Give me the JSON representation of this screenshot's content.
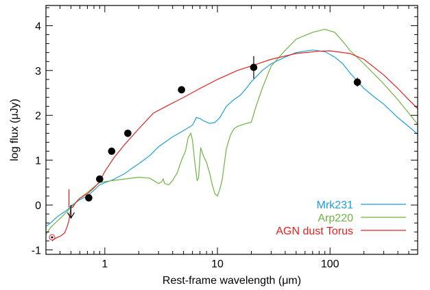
{
  "chart_data": {
    "type": "line",
    "title": "",
    "xlabel": "Rest-frame wavelength (μm)",
    "ylabel": "log flux (μJy)",
    "xscale": "log",
    "xlim": [
      0.3,
      600
    ],
    "ylim": [
      -1.1,
      4.45
    ],
    "x_ticks": [
      1,
      10,
      100
    ],
    "x_tick_labels": [
      "1",
      "10",
      "100"
    ],
    "y_ticks": [
      -1,
      0,
      1,
      2,
      3,
      4
    ],
    "y_tick_labels": [
      "-1",
      "0",
      "1",
      "2",
      "3",
      "4"
    ],
    "grid": false,
    "legend_position": "bottom-right",
    "series": [
      {
        "name": "Mrk231",
        "color": "#1a9fd6",
        "points": [
          [
            0.3,
            -0.48
          ],
          [
            0.33,
            -0.4
          ],
          [
            0.37,
            -0.28
          ],
          [
            0.42,
            -0.18
          ],
          [
            0.46,
            -0.12
          ],
          [
            0.5,
            -0.02
          ],
          [
            0.55,
            0.05
          ],
          [
            0.6,
            0.12
          ],
          [
            0.7,
            0.2
          ],
          [
            0.8,
            0.33
          ],
          [
            0.9,
            0.45
          ],
          [
            1.0,
            0.5
          ],
          [
            1.15,
            0.55
          ],
          [
            1.3,
            0.62
          ],
          [
            1.5,
            0.7
          ],
          [
            1.7,
            0.8
          ],
          [
            2.0,
            0.92
          ],
          [
            2.5,
            1.1
          ],
          [
            3.0,
            1.3
          ],
          [
            3.5,
            1.42
          ],
          [
            4.0,
            1.52
          ],
          [
            5.0,
            1.66
          ],
          [
            6.0,
            1.78
          ],
          [
            6.5,
            1.95
          ],
          [
            7.0,
            1.93
          ],
          [
            7.5,
            1.88
          ],
          [
            8.5,
            1.82
          ],
          [
            9.5,
            1.84
          ],
          [
            10.5,
            1.95
          ],
          [
            12.0,
            2.2
          ],
          [
            14.0,
            2.35
          ],
          [
            16.0,
            2.45
          ],
          [
            18.0,
            2.6
          ],
          [
            20.0,
            2.75
          ],
          [
            25.0,
            3.0
          ],
          [
            30.0,
            3.15
          ],
          [
            40.0,
            3.3
          ],
          [
            50.0,
            3.4
          ],
          [
            70.0,
            3.46
          ],
          [
            90.0,
            3.42
          ],
          [
            110.0,
            3.3
          ],
          [
            130.0,
            3.15
          ],
          [
            150.0,
            2.95
          ],
          [
            200.0,
            2.6
          ],
          [
            250.0,
            2.4
          ],
          [
            300.0,
            2.25
          ],
          [
            400.0,
            1.95
          ],
          [
            500.0,
            1.75
          ],
          [
            600.0,
            1.58
          ]
        ]
      },
      {
        "name": "Arp220",
        "color": "#6db33f",
        "points": [
          [
            0.3,
            -0.65
          ],
          [
            0.33,
            -0.5
          ],
          [
            0.37,
            -0.38
          ],
          [
            0.42,
            -0.25
          ],
          [
            0.46,
            -0.15
          ],
          [
            0.5,
            -0.05
          ],
          [
            0.55,
            0.05
          ],
          [
            0.6,
            0.15
          ],
          [
            0.7,
            0.28
          ],
          [
            0.8,
            0.4
          ],
          [
            0.9,
            0.5
          ],
          [
            1.0,
            0.52
          ],
          [
            1.2,
            0.55
          ],
          [
            1.5,
            0.58
          ],
          [
            2.0,
            0.62
          ],
          [
            2.5,
            0.6
          ],
          [
            3.0,
            0.48
          ],
          [
            3.2,
            0.52
          ],
          [
            3.3,
            0.58
          ],
          [
            3.4,
            0.48
          ],
          [
            3.7,
            0.45
          ],
          [
            4.0,
            0.55
          ],
          [
            4.4,
            0.72
          ],
          [
            4.8,
            1.0
          ],
          [
            5.2,
            1.2
          ],
          [
            5.5,
            1.5
          ],
          [
            5.8,
            1.6
          ],
          [
            6.0,
            1.45
          ],
          [
            6.3,
            0.95
          ],
          [
            6.6,
            0.55
          ],
          [
            6.8,
            0.6
          ],
          [
            7.1,
            1.28
          ],
          [
            7.5,
            1.1
          ],
          [
            8.0,
            0.95
          ],
          [
            8.5,
            0.72
          ],
          [
            9.0,
            0.45
          ],
          [
            9.5,
            0.25
          ],
          [
            10.0,
            0.2
          ],
          [
            10.5,
            0.35
          ],
          [
            11.0,
            0.55
          ],
          [
            11.5,
            0.9
          ],
          [
            12.0,
            1.25
          ],
          [
            13.0,
            1.55
          ],
          [
            14.0,
            1.7
          ],
          [
            15.0,
            1.75
          ],
          [
            17.0,
            1.8
          ],
          [
            20.0,
            1.85
          ],
          [
            22.0,
            2.2
          ],
          [
            25.0,
            2.6
          ],
          [
            30.0,
            3.1
          ],
          [
            40.0,
            3.45
          ],
          [
            50.0,
            3.7
          ],
          [
            70.0,
            3.85
          ],
          [
            90.0,
            3.92
          ],
          [
            110.0,
            3.85
          ],
          [
            130.0,
            3.65
          ],
          [
            150.0,
            3.45
          ],
          [
            200.0,
            3.15
          ],
          [
            300.0,
            2.7
          ],
          [
            400.0,
            2.35
          ],
          [
            500.0,
            2.05
          ],
          [
            600.0,
            1.8
          ]
        ]
      },
      {
        "name": "AGN dust Torus",
        "color": "#e02020",
        "points": [
          [
            0.34,
            -0.8
          ],
          [
            0.36,
            -0.75
          ],
          [
            0.38,
            -0.72
          ],
          [
            0.4,
            -0.7
          ],
          [
            0.42,
            -0.66
          ],
          [
            0.44,
            -0.62
          ],
          [
            0.46,
            -0.5
          ],
          [
            0.48,
            -0.35
          ],
          [
            0.49,
            -0.2
          ],
          [
            0.5,
            -0.05
          ],
          [
            0.52,
            -0.05
          ],
          [
            0.55,
            0.05
          ],
          [
            0.6,
            0.15
          ],
          [
            0.7,
            0.25
          ],
          [
            0.8,
            0.38
          ],
          [
            0.9,
            0.52
          ],
          [
            1.0,
            0.75
          ],
          [
            1.2,
            1.05
          ],
          [
            1.5,
            1.35
          ],
          [
            2.0,
            1.7
          ],
          [
            2.7,
            2.05
          ],
          [
            3.5,
            2.2
          ],
          [
            5.0,
            2.4
          ],
          [
            7.0,
            2.6
          ],
          [
            10.0,
            2.8
          ],
          [
            15.0,
            3.0
          ],
          [
            20.0,
            3.1
          ],
          [
            30.0,
            3.25
          ],
          [
            50.0,
            3.38
          ],
          [
            80.0,
            3.43
          ],
          [
            100.0,
            3.44
          ],
          [
            150.0,
            3.38
          ],
          [
            200.0,
            3.25
          ],
          [
            300.0,
            2.9
          ],
          [
            400.0,
            2.6
          ],
          [
            500.0,
            2.35
          ],
          [
            600.0,
            2.15
          ]
        ]
      }
    ],
    "observed_points": [
      {
        "x": 0.72,
        "y": 0.16
      },
      {
        "x": 0.9,
        "y": 0.58
      },
      {
        "x": 1.15,
        "y": 1.2
      },
      {
        "x": 1.6,
        "y": 1.6
      },
      {
        "x": 4.8,
        "y": 2.57
      },
      {
        "x": 21.0,
        "y": 3.07,
        "err": 0.25
      },
      {
        "x": 175.0,
        "y": 2.74,
        "err": 0.1
      }
    ],
    "upper_limit": {
      "x": 0.5,
      "y": 0.0,
      "color": "#000000"
    },
    "red_marker": {
      "x": 0.48,
      "y_top": 0.35,
      "y_bottom": -0.05,
      "color": "#e02020"
    },
    "circle_marker": {
      "x": 0.34,
      "y": -0.72
    }
  }
}
